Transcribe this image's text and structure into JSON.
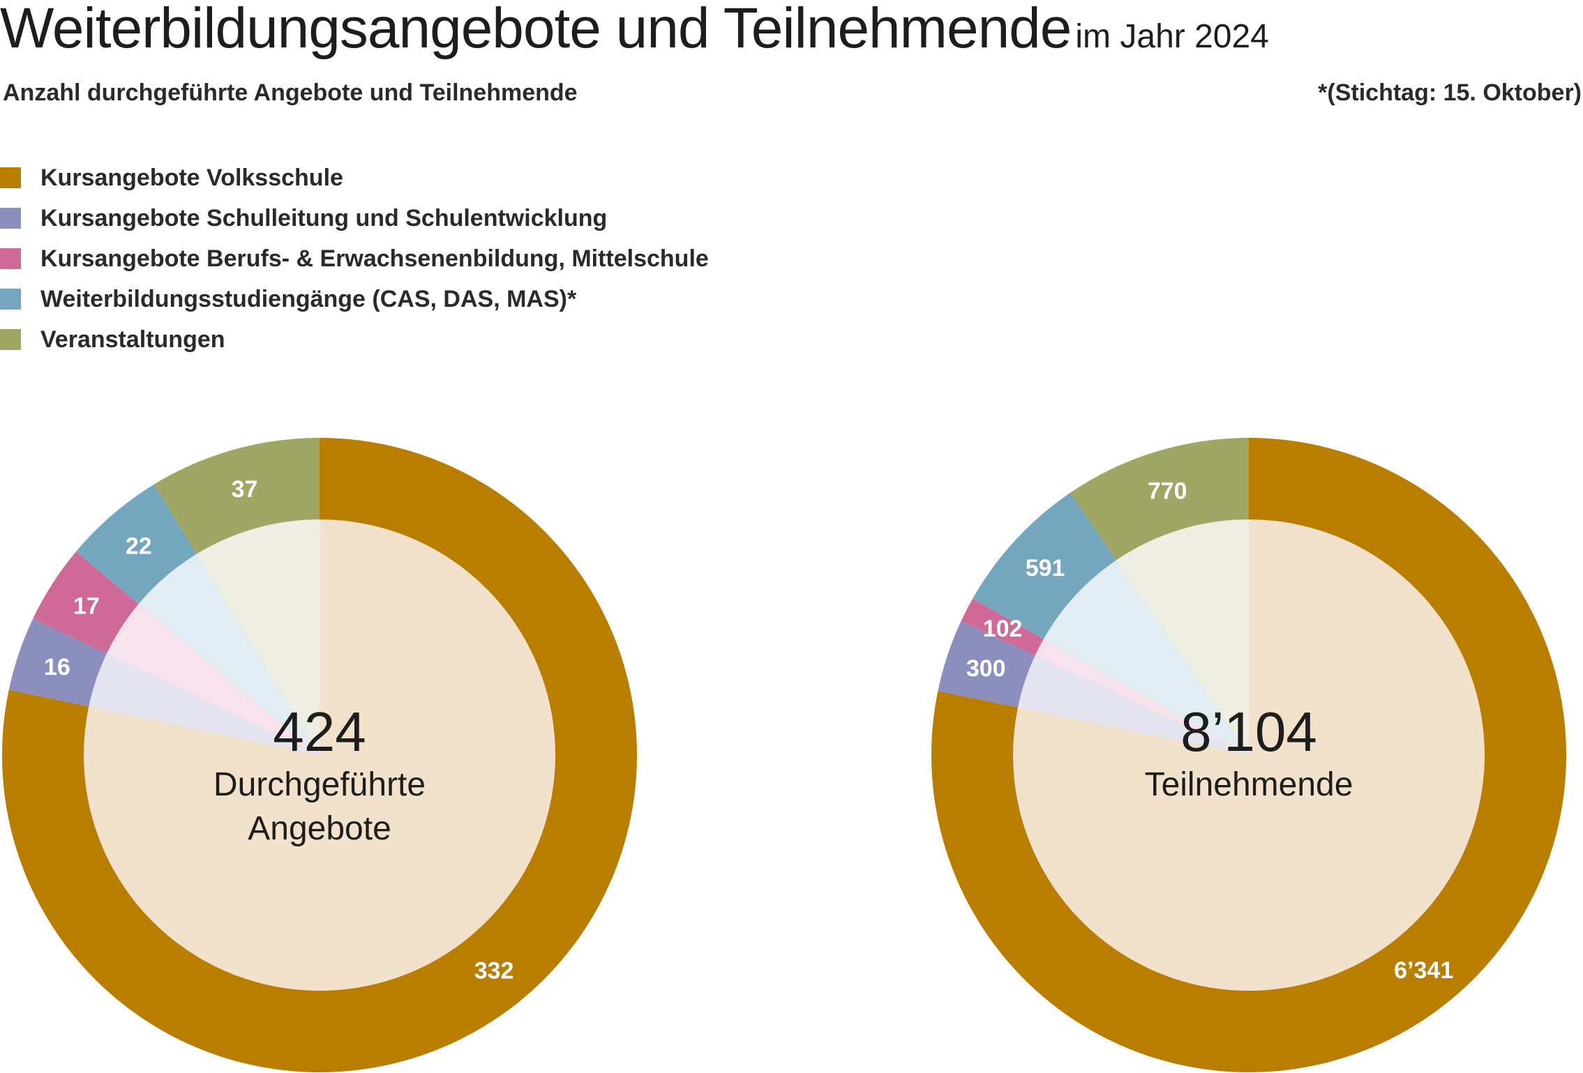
{
  "title": {
    "main": "Weiterbildungsangebote und Teilnehmende",
    "sub": "im Jahr 2024"
  },
  "subtitle": "Anzahl durchgeführte Angebote und Teilnehmende",
  "note": "*(Stichtag: 15. Oktober)",
  "legend": [
    {
      "label": "Kursangebote Volksschule",
      "color": "#b97d00"
    },
    {
      "label": "Kursangebote Schulleitung und Schulentwicklung",
      "color": "#8c8fbd"
    },
    {
      "label": "Kursangebote Berufs- & Erwachsenenbildung, Mittelschule",
      "color": "#cf6a98"
    },
    {
      "label": "Weiterbildungsstudiengänge (CAS, DAS, MAS)*",
      "color": "#74a6bd"
    },
    {
      "label": "Veranstaltungen",
      "color": "#a0a663"
    }
  ],
  "chart_data": [
    {
      "type": "pie",
      "title": "",
      "total_label": "424",
      "center_label": [
        "Durchgeführte",
        "Angebote"
      ],
      "categories": [
        "Kursangebote Volksschule",
        "Kursangebote Schulleitung und Schulentwicklung",
        "Kursangebote Berufs- & Erwachsenenbildung, Mittelschule",
        "Weiterbildungsstudiengänge (CAS, DAS, MAS)*",
        "Veranstaltungen"
      ],
      "values": [
        332,
        16,
        17,
        22,
        37
      ],
      "value_labels": [
        "332",
        "16",
        "17",
        "22",
        "37"
      ]
    },
    {
      "type": "pie",
      "title": "",
      "total_label": "8’104",
      "center_label": [
        "Teilnehmende"
      ],
      "categories": [
        "Kursangebote Volksschule",
        "Kursangebote Schulleitung und Schulentwicklung",
        "Kursangebote Berufs- & Erwachsenenbildung, Mittelschule",
        "Weiterbildungsstudiengänge (CAS, DAS, MAS)*",
        "Veranstaltungen"
      ],
      "values": [
        6341,
        300,
        102,
        591,
        770
      ],
      "value_labels": [
        "6’341",
        "300",
        "102",
        "591",
        "770"
      ]
    }
  ]
}
